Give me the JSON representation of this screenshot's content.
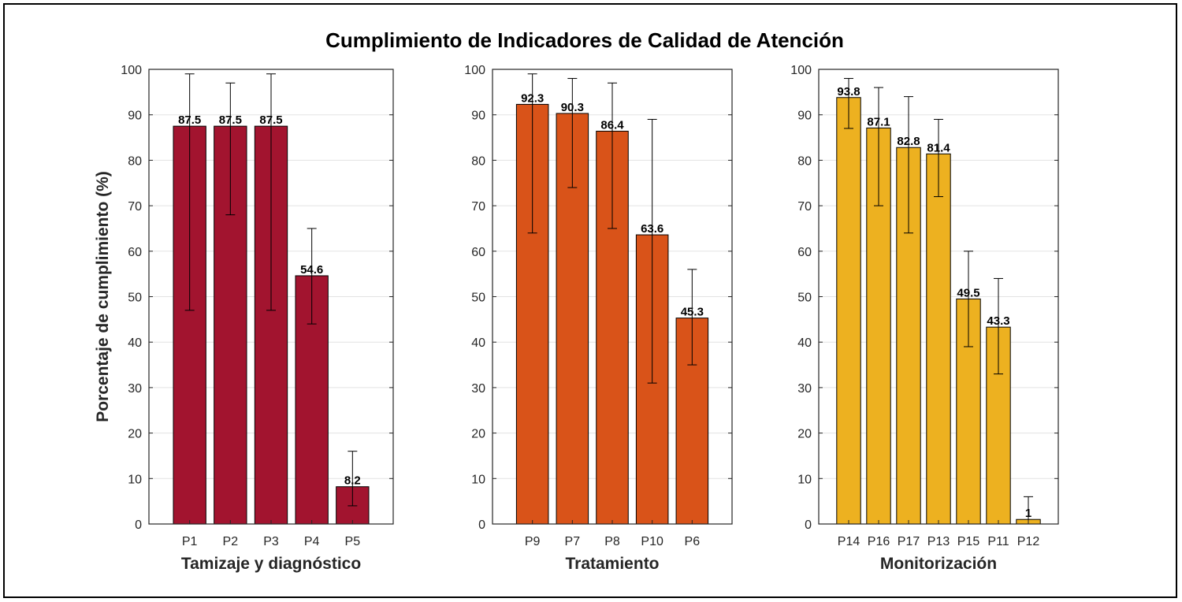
{
  "title": "Cumplimiento de Indicadores de Calidad de Atención",
  "chart_data": [
    {
      "type": "bar",
      "xlabel": "Tamizaje y diagnóstico",
      "ylabel": "Porcentaje de cumplimiento (%)",
      "ylim": [
        0,
        100
      ],
      "yticks": [
        0,
        10,
        20,
        30,
        40,
        50,
        60,
        70,
        80,
        90,
        100
      ],
      "grid": true,
      "color": "#A2142F",
      "categories": [
        "P1",
        "P2",
        "P3",
        "P4",
        "P5"
      ],
      "values": [
        87.5,
        87.5,
        87.5,
        54.6,
        8.2
      ],
      "labels": [
        "87.5",
        "87.5",
        "87.5",
        "54.6",
        "8.2"
      ],
      "error_low": [
        47,
        68,
        47,
        44,
        4
      ],
      "error_high": [
        99,
        97,
        99,
        65,
        16
      ]
    },
    {
      "type": "bar",
      "xlabel": "Tratamiento",
      "ylabel": "",
      "ylim": [
        0,
        100
      ],
      "yticks": [
        0,
        10,
        20,
        30,
        40,
        50,
        60,
        70,
        80,
        90,
        100
      ],
      "grid": true,
      "color": "#D95319",
      "categories": [
        "P9",
        "P7",
        "P8",
        "P10",
        "P6"
      ],
      "values": [
        92.3,
        90.3,
        86.4,
        63.6,
        45.3
      ],
      "labels": [
        "92.3",
        "90.3",
        "86.4",
        "63.6",
        "45.3"
      ],
      "error_low": [
        64,
        74,
        65,
        31,
        35
      ],
      "error_high": [
        99,
        98,
        97,
        89,
        56
      ]
    },
    {
      "type": "bar",
      "xlabel": "Monitorización",
      "ylabel": "",
      "ylim": [
        0,
        100
      ],
      "yticks": [
        0,
        10,
        20,
        30,
        40,
        50,
        60,
        70,
        80,
        90,
        100
      ],
      "grid": true,
      "color": "#EDB120",
      "categories": [
        "P14",
        "P16",
        "P17",
        "P13",
        "P15",
        "P11",
        "P12"
      ],
      "values": [
        93.8,
        87.1,
        82.8,
        81.4,
        49.5,
        43.3,
        1
      ],
      "labels": [
        "93.8",
        "87.1",
        "82.8",
        "81.4",
        "49.5",
        "43.3",
        "1"
      ],
      "error_low": [
        87,
        70,
        64,
        72,
        39,
        33,
        0
      ],
      "error_high": [
        98,
        96,
        94,
        89,
        60,
        54,
        6
      ]
    }
  ]
}
